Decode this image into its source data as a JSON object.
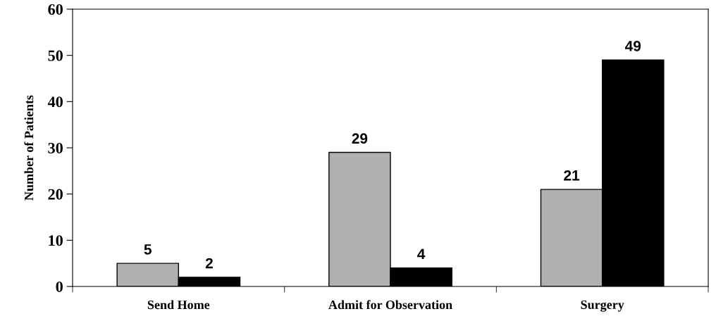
{
  "chart_data": {
    "type": "bar",
    "ylabel": "Number of Patients",
    "categories": [
      "Send Home",
      "Admit for Observation",
      "Surgery"
    ],
    "series": [
      {
        "color": "#b0b0b0",
        "values": [
          5,
          29,
          21
        ]
      },
      {
        "color": "#000000",
        "values": [
          2,
          4,
          49
        ]
      }
    ],
    "ylim": [
      0,
      60
    ],
    "yticks": [
      0,
      10,
      20,
      30,
      40,
      50,
      60
    ],
    "grid": false,
    "legend": false,
    "data_labels": true
  }
}
